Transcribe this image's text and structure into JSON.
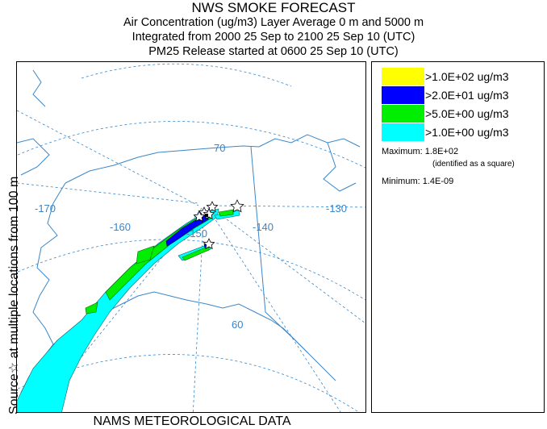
{
  "header": {
    "title": "NWS SMOKE FORECAST",
    "line2": "Air Concentration (ug/m3) Layer Average     0 m and  5000 m",
    "line3": "Integrated from 2000 25 Sep to 2100 25 Sep 10 (UTC)",
    "line4": "PM25 Release started at 0600 25 Sep 10 (UTC)"
  },
  "side_label": "Source☆  at multiple locations  from   100 m",
  "bottom_label": "NAMS METEOROLOGICAL DATA",
  "map": {
    "graticule_labels": [
      "-170",
      "-160",
      "-150",
      "-140",
      "-130",
      "70",
      "60"
    ],
    "colors": {
      "graticule": "#3a86c8",
      "coast": "#3a86c8",
      "border": "#3a86c8"
    }
  },
  "legend": {
    "items": [
      {
        "label": ">1.0E+02 ug/m3",
        "color": "#ffff00"
      },
      {
        "label": ">2.0E+01 ug/m3",
        "color": "#0000ff"
      },
      {
        "label": ">5.0E+00 ug/m3",
        "color": "#00ee00"
      },
      {
        "label": ">1.0E+00 ug/m3",
        "color": "#00ffff"
      }
    ],
    "maximum": "Maximum: 1.8E+02",
    "maximum_note": "(identified as a square)",
    "minimum": "Minimum: 1.4E-09"
  }
}
